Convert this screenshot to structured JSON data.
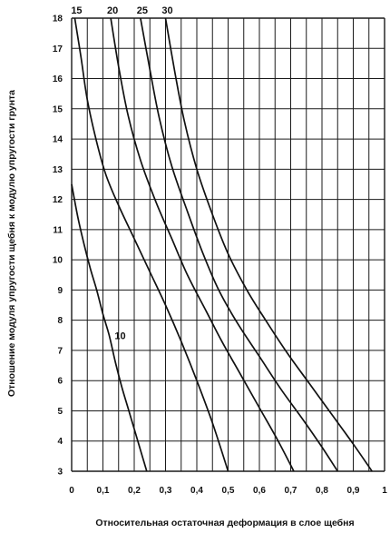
{
  "chart_data": {
    "type": "line",
    "title": "",
    "xlabel": "Относительная остаточная деформация в слое щебня",
    "ylabel": "Отношение модуля упругости щебня к модулю упругости грунта",
    "xlim": [
      0,
      1
    ],
    "ylim": [
      3,
      18
    ],
    "x_ticks": [
      "0",
      "0,1",
      "0,2",
      "0,3",
      "0,4",
      "0,5",
      "0,6",
      "0,7",
      "0,8",
      "0,9",
      "1"
    ],
    "y_ticks": [
      "3",
      "4",
      "5",
      "6",
      "7",
      "8",
      "9",
      "10",
      "11",
      "12",
      "13",
      "14",
      "15",
      "16",
      "17",
      "18"
    ],
    "grid": true,
    "series": [
      {
        "name": "10",
        "points": [
          [
            0.0,
            12.5
          ],
          [
            0.02,
            11.4
          ],
          [
            0.04,
            10.5
          ],
          [
            0.06,
            9.7
          ],
          [
            0.08,
            9.0
          ],
          [
            0.1,
            8.2
          ],
          [
            0.12,
            7.5
          ],
          [
            0.14,
            6.6
          ],
          [
            0.16,
            5.8
          ],
          [
            0.18,
            5.1
          ],
          [
            0.2,
            4.4
          ],
          [
            0.22,
            3.7
          ],
          [
            0.24,
            3.0
          ]
        ]
      },
      {
        "name": "15",
        "points": [
          [
            0.01,
            18.0
          ],
          [
            0.03,
            16.7
          ],
          [
            0.05,
            15.3
          ],
          [
            0.08,
            13.9
          ],
          [
            0.11,
            12.8
          ],
          [
            0.15,
            11.8
          ],
          [
            0.2,
            10.7
          ],
          [
            0.25,
            9.6
          ],
          [
            0.3,
            8.5
          ],
          [
            0.35,
            7.3
          ],
          [
            0.4,
            6.0
          ],
          [
            0.45,
            4.6
          ],
          [
            0.5,
            3.0
          ]
        ]
      },
      {
        "name": "20",
        "points": [
          [
            0.125,
            18.0
          ],
          [
            0.15,
            16.4
          ],
          [
            0.18,
            14.8
          ],
          [
            0.22,
            13.3
          ],
          [
            0.27,
            11.9
          ],
          [
            0.32,
            10.7
          ],
          [
            0.37,
            9.5
          ],
          [
            0.43,
            8.3
          ],
          [
            0.48,
            7.3
          ],
          [
            0.54,
            6.2
          ],
          [
            0.6,
            5.1
          ],
          [
            0.66,
            4.0
          ],
          [
            0.71,
            3.0
          ]
        ]
      },
      {
        "name": "25",
        "points": [
          [
            0.22,
            18.0
          ],
          [
            0.25,
            16.3
          ],
          [
            0.28,
            14.7
          ],
          [
            0.32,
            13.1
          ],
          [
            0.37,
            11.6
          ],
          [
            0.42,
            10.2
          ],
          [
            0.47,
            9.0
          ],
          [
            0.53,
            7.9
          ],
          [
            0.6,
            6.8
          ],
          [
            0.67,
            5.7
          ],
          [
            0.74,
            4.7
          ],
          [
            0.8,
            3.8
          ],
          [
            0.85,
            3.0
          ]
        ]
      },
      {
        "name": "30",
        "points": [
          [
            0.3,
            18.0
          ],
          [
            0.33,
            16.2
          ],
          [
            0.36,
            14.6
          ],
          [
            0.4,
            13.0
          ],
          [
            0.45,
            11.5
          ],
          [
            0.5,
            10.2
          ],
          [
            0.56,
            9.0
          ],
          [
            0.62,
            8.0
          ],
          [
            0.69,
            6.9
          ],
          [
            0.76,
            5.9
          ],
          [
            0.83,
            4.9
          ],
          [
            0.9,
            3.9
          ],
          [
            0.96,
            3.0
          ]
        ]
      }
    ]
  }
}
